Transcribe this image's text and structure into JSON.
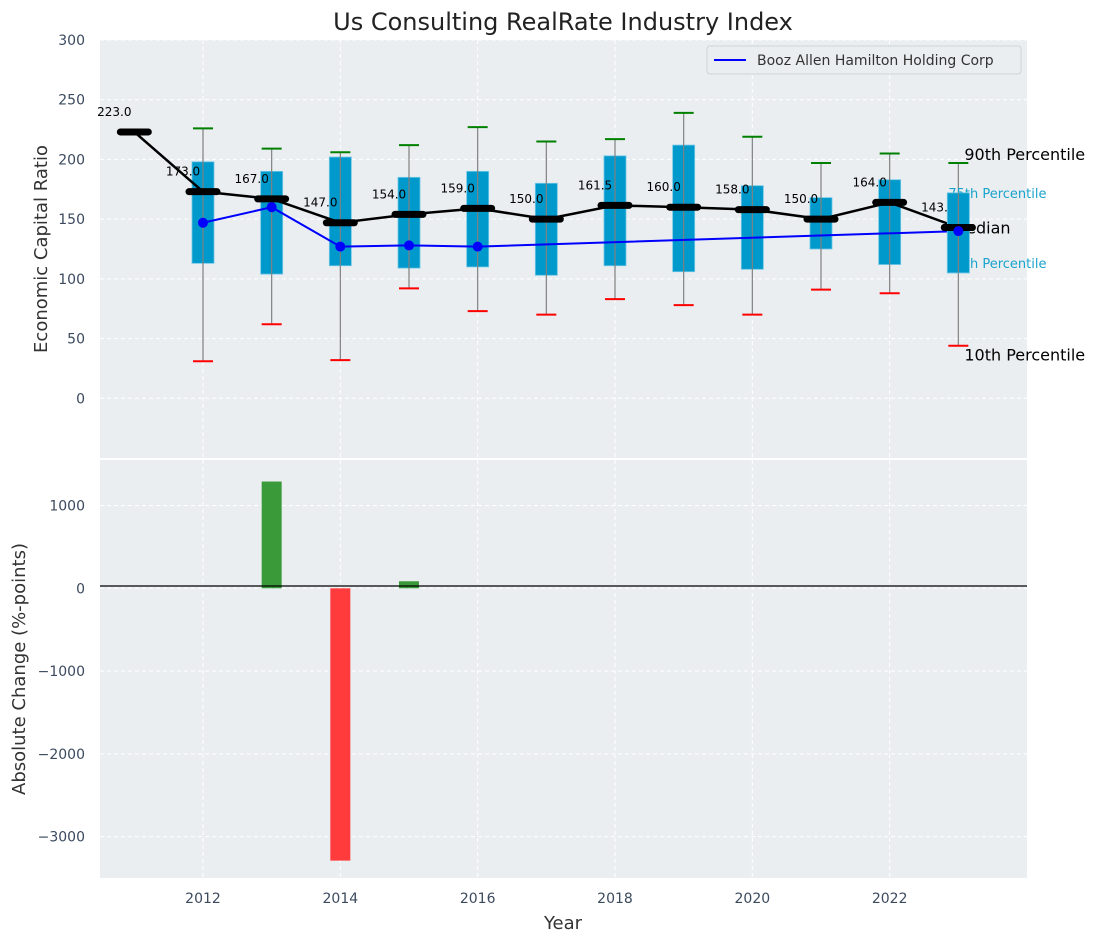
{
  "chart_data": [
    {
      "type": "box",
      "title": "Us Consulting RealRate Industry Index",
      "xlabel": "",
      "ylabel": "Economic Capital Ratio",
      "ylim": [
        -50,
        300
      ],
      "xlim": [
        2010.5,
        2024.0
      ],
      "yticks": [
        0,
        50,
        100,
        150,
        200,
        250,
        300
      ],
      "grid": true,
      "legend": {
        "position": "top-right",
        "entries": [
          "Booz Allen Hamilton Holding Corp"
        ]
      },
      "years": [
        2011,
        2012,
        2013,
        2014,
        2015,
        2016,
        2017,
        2018,
        2019,
        2020,
        2021,
        2022,
        2023
      ],
      "median": [
        223.0,
        173.0,
        167.0,
        147.0,
        154.0,
        159.0,
        150.0,
        161.5,
        160.0,
        158.0,
        150.0,
        164.0,
        143.0
      ],
      "median_labels": [
        "223.0",
        "173.0",
        "167.0",
        "147.0",
        "154.0",
        "159.0",
        "150.0",
        "161.5",
        "160.0",
        "158.0",
        "150.0",
        "164.0",
        "143.0"
      ],
      "p90": [
        null,
        226,
        209,
        206,
        212,
        227,
        215,
        217,
        239,
        219,
        197,
        205,
        197
      ],
      "p75": [
        null,
        198,
        190,
        202,
        185,
        190,
        180,
        203,
        212,
        178,
        168,
        183,
        172
      ],
      "p25": [
        null,
        113,
        104,
        111,
        109,
        110,
        103,
        111,
        106,
        108,
        125,
        112,
        105
      ],
      "p10": [
        null,
        31,
        62,
        32,
        92,
        73,
        70,
        83,
        78,
        70,
        91,
        88,
        44
      ],
      "company": {
        "name": "Booz Allen Hamilton Holding Corp",
        "years": [
          2012,
          2013,
          2014,
          2015,
          2016,
          2023
        ],
        "values": [
          147,
          160,
          127,
          128,
          127,
          140
        ]
      },
      "annotations": [
        "90th Percentile",
        "75th Percentile",
        "Median",
        "25th Percentile",
        "10th Percentile"
      ],
      "colors": {
        "box": "#0099cc",
        "median": "#000000",
        "company": "#0000ff",
        "p90_cap": "#008000",
        "p10_cap": "#ff0000",
        "whisker": "#808080",
        "pct_label": "#1aa3cc"
      }
    },
    {
      "type": "bar",
      "xlabel": "Year",
      "ylabel": "Absolute Change (%-points)",
      "ylim": [
        -3500,
        1550
      ],
      "yticks": [
        -3000,
        -2000,
        -1000,
        0,
        1000
      ],
      "xticks": [
        2012,
        2014,
        2016,
        2018,
        2020,
        2022
      ],
      "grid": true,
      "x": [
        2013,
        2014,
        2015
      ],
      "values": [
        1290,
        -3290,
        85
      ],
      "colors": {
        "positive": "#3a9a3a",
        "negative": "#ff3b3b"
      }
    }
  ]
}
